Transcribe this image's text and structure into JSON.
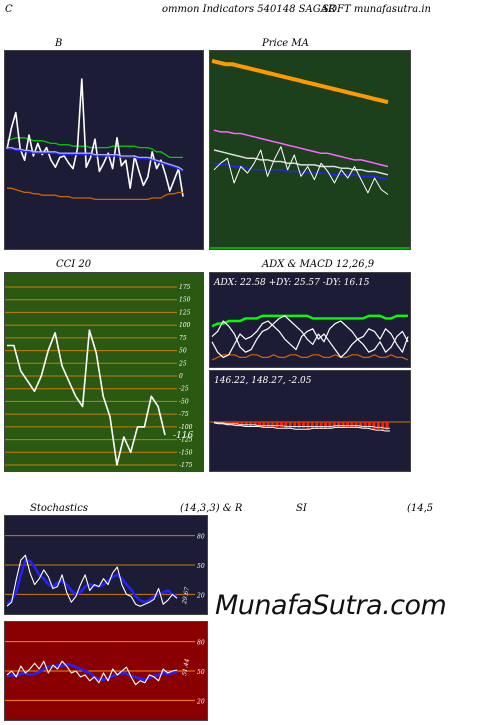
{
  "header": {
    "left": "C",
    "middle": "ommon  Indicators 540148 SAGAR",
    "right": "SOFT munafasutra.in"
  },
  "watermark": "MunafaSutra.com",
  "colors": {
    "navy_bg": "#1c1c36",
    "green_bg": "#1c3f1c",
    "olive_bg": "#2a5a12",
    "red_bg": "#8a0000"
  },
  "chart_data": [
    {
      "id": "bollinger",
      "type": "line",
      "title": "B",
      "series": [
        {
          "color": "#00cc00",
          "values": [
            64,
            63,
            62,
            62,
            62,
            63,
            64,
            64,
            64,
            65,
            66,
            66,
            67,
            67,
            67,
            68,
            68,
            68,
            68,
            69,
            69,
            69,
            69,
            69,
            68,
            68,
            68,
            68,
            68,
            68,
            69,
            69,
            69,
            70,
            72,
            72,
            74,
            76,
            76,
            76,
            76
          ]
        },
        {
          "color": "#ffffff",
          "values": [
            70,
            55,
            44,
            70,
            78,
            60,
            75,
            66,
            74,
            69,
            78,
            83,
            76,
            75,
            80,
            84,
            70,
            20,
            83,
            76,
            63,
            86,
            80,
            73,
            84,
            62,
            82,
            78,
            98,
            75,
            86,
            96,
            90,
            72,
            84,
            78,
            88,
            100,
            92,
            84,
            104
          ]
        },
        {
          "color": "#2222ff",
          "values": [
            70,
            70,
            71,
            71,
            72,
            72,
            73,
            73,
            73,
            73,
            73,
            73,
            74,
            74,
            74,
            74,
            74,
            74,
            74,
            74,
            75,
            75,
            75,
            75,
            75,
            75,
            76,
            76,
            76,
            76,
            77,
            77,
            77,
            78,
            79,
            80,
            81,
            82,
            83,
            84,
            86
          ]
        },
        {
          "color": "#aaaaff",
          "values": [
            69,
            69,
            70,
            70,
            71,
            71,
            72,
            72,
            72,
            72,
            72,
            72,
            73,
            73,
            73,
            73,
            73,
            73,
            73,
            73,
            74,
            74,
            74,
            74,
            74,
            74,
            75,
            75,
            75,
            75,
            76,
            76,
            76,
            77,
            78,
            79,
            80,
            81,
            82,
            83,
            85
          ]
        },
        {
          "color": "#cc6600",
          "values": [
            98,
            98,
            99,
            100,
            101,
            101,
            102,
            102,
            103,
            103,
            103,
            103,
            104,
            104,
            104,
            105,
            105,
            105,
            105,
            105,
            106,
            106,
            106,
            106,
            106,
            106,
            106,
            106,
            106,
            106,
            106,
            106,
            106,
            105,
            105,
            105,
            103,
            102,
            102,
            101,
            101
          ]
        }
      ]
    },
    {
      "id": "price-ma",
      "type": "line",
      "title": "Price   MA",
      "series": [
        {
          "color": "#ff9900",
          "values": [
            2.14,
            2.13,
            2.12,
            2.12,
            2.11,
            2.1,
            2.09,
            2.08,
            2.07,
            2.06,
            2.05,
            2.04,
            2.03,
            2.02,
            2.01,
            2.0,
            1.99,
            1.98,
            1.97,
            1.96,
            1.95,
            1.94,
            1.93,
            1.92,
            1.91,
            1.9,
            1.89
          ]
        },
        {
          "color": "#ff66ff",
          "values": [
            1.72,
            1.71,
            1.71,
            1.7,
            1.7,
            1.69,
            1.68,
            1.67,
            1.66,
            1.65,
            1.64,
            1.63,
            1.62,
            1.61,
            1.6,
            1.59,
            1.58,
            1.58,
            1.57,
            1.56,
            1.55,
            1.54,
            1.54,
            1.53,
            1.52,
            1.51,
            1.5
          ]
        },
        {
          "color": "#2222ff",
          "values": [
            1.52,
            1.51,
            1.51,
            1.5,
            1.5,
            1.49,
            1.48,
            1.48,
            1.48,
            1.48,
            1.48,
            1.47,
            1.47,
            1.47,
            1.46,
            1.46,
            1.46,
            1.46,
            1.45,
            1.45,
            1.45,
            1.45,
            1.44,
            1.44,
            1.44,
            1.43,
            1.42
          ]
        },
        {
          "color": "#dddddd",
          "values": [
            1.6,
            1.59,
            1.58,
            1.57,
            1.56,
            1.55,
            1.55,
            1.54,
            1.54,
            1.53,
            1.53,
            1.52,
            1.52,
            1.51,
            1.51,
            1.51,
            1.5,
            1.5,
            1.5,
            1.49,
            1.49,
            1.48,
            1.48,
            1.47,
            1.47,
            1.46,
            1.45
          ]
        },
        {
          "color": "#ffffff",
          "values": [
            1.48,
            1.52,
            1.55,
            1.4,
            1.5,
            1.46,
            1.52,
            1.6,
            1.44,
            1.54,
            1.62,
            1.48,
            1.57,
            1.44,
            1.5,
            1.42,
            1.52,
            1.47,
            1.4,
            1.48,
            1.43,
            1.5,
            1.42,
            1.34,
            1.43,
            1.36,
            1.33
          ]
        }
      ]
    },
    {
      "id": "cci",
      "type": "line",
      "title": "CCI 20",
      "ylim": [
        -175,
        175
      ],
      "yticks": [
        175,
        150,
        125,
        100,
        75,
        50,
        25,
        0,
        -25,
        -50,
        -75,
        -100,
        -125,
        -150,
        -175
      ],
      "last_label": "-116",
      "series": [
        {
          "color": "#ffffff",
          "values": [
            60,
            60,
            10,
            -10,
            -30,
            0,
            50,
            85,
            20,
            -10,
            -40,
            -60,
            90,
            45,
            -40,
            -80,
            -175,
            -120,
            -150,
            -100,
            -100,
            -40,
            -60,
            -116
          ]
        }
      ]
    },
    {
      "id": "adx",
      "type": "line",
      "title": "ADX  & MACD 12,26,9",
      "readout": "ADX: 22.58  +DY: 25.57 -DY: 16.15",
      "series": [
        {
          "color": "#00ff00",
          "values": [
            12,
            11,
            11,
            10,
            10,
            10,
            9,
            9,
            9,
            8,
            8,
            8,
            8,
            8,
            8,
            8,
            8,
            8,
            9,
            9,
            9,
            9,
            9,
            9,
            9,
            9,
            9,
            9,
            8,
            8,
            8,
            9,
            9,
            8,
            8,
            8
          ]
        },
        {
          "color": "#cc6600",
          "values": [
            25,
            24,
            23,
            23,
            23,
            24,
            24,
            23,
            23,
            24,
            24,
            23,
            24,
            24,
            23,
            23,
            24,
            24,
            23,
            23,
            24,
            24,
            23,
            24,
            24,
            23,
            23,
            24,
            24,
            23,
            24,
            24,
            23,
            24,
            24,
            25
          ]
        },
        {
          "color": "#ffffff",
          "values": [
            18,
            22,
            24,
            23,
            19,
            15,
            17,
            16,
            14,
            11,
            10,
            12,
            14,
            17,
            19,
            21,
            16,
            14,
            13,
            17,
            15,
            18,
            21,
            24,
            22,
            19,
            17,
            16,
            13,
            14,
            17,
            13,
            15,
            19,
            22,
            16
          ]
        },
        {
          "color": "#ffffff",
          "values": [
            16,
            14,
            10,
            12,
            15,
            20,
            22,
            21,
            17,
            14,
            13,
            11,
            9,
            8,
            10,
            12,
            14,
            17,
            19,
            15,
            18,
            13,
            11,
            10,
            12,
            14,
            17,
            19,
            22,
            21,
            18,
            22,
            20,
            16,
            14,
            18
          ]
        }
      ]
    },
    {
      "id": "macd",
      "type": "bar",
      "readout": "146.22,  148.27,  -2.05",
      "values": [
        1,
        2,
        2,
        3,
        3,
        3,
        3,
        4,
        4,
        4,
        4,
        5,
        5,
        5,
        5,
        5,
        6,
        6,
        6,
        6,
        6,
        7,
        7,
        7,
        7,
        7,
        6,
        6,
        6,
        6,
        5,
        5,
        5,
        6,
        6,
        6,
        7,
        7,
        8,
        8
      ],
      "series": [
        {
          "color": "#ffffff",
          "values": [
            -1,
            -2,
            -2,
            -3,
            -3,
            -4,
            -4,
            -5,
            -5,
            -5,
            -5,
            -6,
            -6,
            -6,
            -7,
            -7,
            -7,
            -7,
            -8,
            -8,
            -8,
            -8,
            -7,
            -7,
            -7,
            -7,
            -7,
            -6,
            -6,
            -6,
            -6,
            -6,
            -6,
            -7,
            -7,
            -8,
            -9,
            -9,
            -10,
            -10
          ]
        },
        {
          "color": "#dddddd",
          "values": [
            0,
            -1,
            -1,
            -2,
            -2,
            -2,
            -3,
            -3,
            -3,
            -3,
            -4,
            -4,
            -4,
            -4,
            -4,
            -4,
            -5,
            -5,
            -5,
            -5,
            -5,
            -5,
            -5,
            -5,
            -5,
            -5,
            -5,
            -4,
            -4,
            -4,
            -4,
            -4,
            -4,
            -5,
            -5,
            -5,
            -6,
            -6,
            -7,
            -7
          ]
        }
      ]
    },
    {
      "id": "stochastics",
      "type": "line",
      "title_left": "Stochastics",
      "title_right": "(14,3,3) & R",
      "ylim": [
        0,
        100
      ],
      "yticks": [
        80,
        50,
        20
      ],
      "last_label": "29.67",
      "series": [
        {
          "color": "#2222ff",
          "values": [
            10,
            14,
            22,
            40,
            55,
            54,
            48,
            40,
            36,
            30,
            28,
            32,
            34,
            30,
            24,
            20,
            22,
            28,
            30,
            29,
            28,
            30,
            34,
            38,
            40,
            36,
            30,
            25,
            18,
            14,
            12,
            14,
            18,
            20,
            22,
            24,
            20,
            18
          ]
        },
        {
          "color": "#ffffff",
          "values": [
            8,
            12,
            35,
            55,
            60,
            42,
            30,
            36,
            45,
            38,
            26,
            28,
            40,
            22,
            12,
            18,
            30,
            40,
            24,
            30,
            28,
            36,
            30,
            42,
            48,
            30,
            20,
            18,
            10,
            8,
            10,
            12,
            15,
            26,
            10,
            14,
            20,
            16
          ]
        }
      ]
    },
    {
      "id": "rsi",
      "type": "line",
      "title_left": "SI",
      "title_right": "(14,5",
      "ylim": [
        0,
        100
      ],
      "yticks": [
        80,
        50,
        20
      ],
      "last_label": "51.44",
      "series": [
        {
          "color": "#2222ff",
          "values": [
            44,
            46,
            45,
            47,
            48,
            46,
            47,
            49,
            52,
            55,
            54,
            56,
            55,
            57,
            56,
            54,
            52,
            50,
            48,
            44,
            42,
            41,
            43,
            45,
            46,
            48,
            47,
            45,
            44,
            42,
            41,
            43,
            45,
            46,
            48,
            47,
            48,
            49
          ]
        },
        {
          "color": "#ffffff",
          "values": [
            46,
            50,
            44,
            55,
            48,
            52,
            58,
            52,
            60,
            48,
            56,
            52,
            60,
            55,
            48,
            50,
            44,
            46,
            40,
            44,
            38,
            48,
            40,
            52,
            46,
            50,
            54,
            44,
            36,
            40,
            38,
            46,
            44,
            40,
            52,
            48,
            50,
            51
          ]
        }
      ]
    }
  ]
}
